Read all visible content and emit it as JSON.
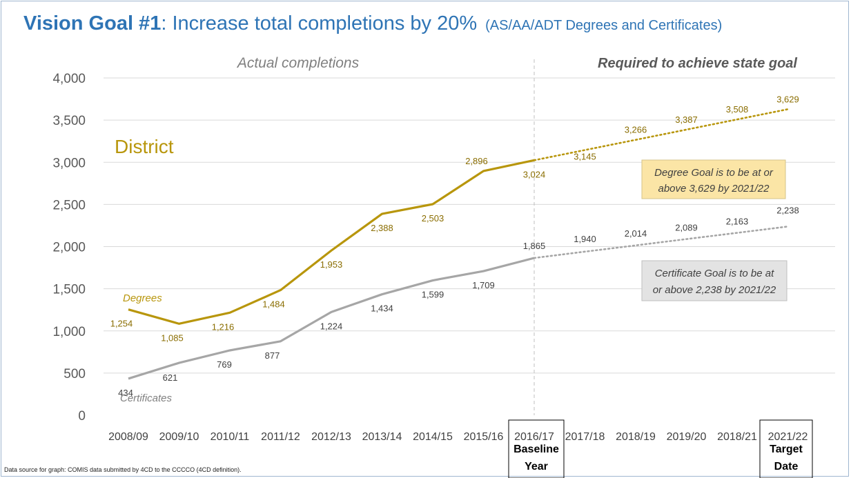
{
  "title": {
    "bold": "Vision Goal #1",
    "main": ": Increase total completions by 20%",
    "sub": "(AS/AA/ADT Degrees and Certificates)"
  },
  "source_note": "Data source for graph: COMIS data submitted by 4CD to the CCCCO  (4CD definition).",
  "colors": {
    "degrees": "#b8960c",
    "certificates": "#a6a6a6",
    "title": "#2e74b5",
    "grid": "#d9d9d9"
  },
  "chart_data": {
    "type": "line",
    "categories": [
      "2008/09",
      "2009/10",
      "2010/11",
      "2011/12",
      "2012/13",
      "2013/14",
      "2014/15",
      "2015/16",
      "2016/17",
      "2017/18",
      "2018/19",
      "2019/20",
      "2018/21",
      "2021/22"
    ],
    "ylim": [
      0,
      4000
    ],
    "yticks": [
      "0",
      "500",
      "1,000",
      "1,500",
      "2,000",
      "2,500",
      "3,000",
      "3,500",
      "4,000"
    ],
    "grid": true,
    "series": [
      {
        "name": "Degrees",
        "values": [
          1254,
          1085,
          1216,
          1484,
          1953,
          2388,
          2503,
          2896,
          3024,
          3145,
          3266,
          3387,
          3508,
          3629
        ],
        "labels": [
          "1,254",
          "1,085",
          "1,216",
          "1,484",
          "1,953",
          "2,388",
          "2,503",
          "2,896",
          "3,024",
          "3,145",
          "3,266",
          "3,387",
          "3,508",
          "3,629"
        ],
        "actual_through": "2016/17",
        "projected_style": "dotted"
      },
      {
        "name": "Certificates",
        "values": [
          434,
          621,
          769,
          877,
          1224,
          1434,
          1599,
          1709,
          1865,
          1940,
          2014,
          2089,
          2163,
          2238
        ],
        "labels": [
          "434",
          "621",
          "769",
          "877",
          "1,224",
          "1,434",
          "1,599",
          "1,709",
          "1,865",
          "1,940",
          "2,014",
          "2,089",
          "2,163",
          "2,238"
        ],
        "actual_through": "2016/17",
        "projected_style": "dotted"
      }
    ],
    "annotations": {
      "actual": "Actual completions",
      "required": "Required to achieve state goal",
      "district": "District",
      "degree_goal_line1": "Degree Goal is to be at or",
      "degree_goal_line2": "above 3,629 by 2021/22",
      "cert_goal_line1": "Certificate Goal is to be at",
      "cert_goal_line2": "or above 2,238 by 2021/22",
      "baseline_line1": "Baseline",
      "baseline_line2": "Year",
      "target_line1": "Target",
      "target_line2": "Date"
    }
  }
}
